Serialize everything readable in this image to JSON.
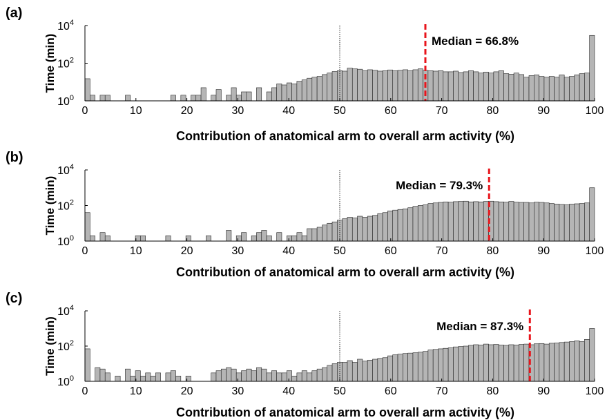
{
  "figure": {
    "background": "#ffffff"
  },
  "colors": {
    "bar_fill": "#b5b5b5",
    "bar_stroke": "#222222",
    "median_line": "#e8141b",
    "ref_line": "#000000"
  },
  "chart_data": [
    {
      "type": "bar",
      "panel_label": "(a)",
      "xlabel": "Contribution of anatomical arm to overall arm activity (%)",
      "ylabel": "Time (min)",
      "y_scale": "log",
      "ylim": [
        1,
        10000
      ],
      "xlim": [
        0,
        100
      ],
      "x_ticks": [
        "0",
        "10",
        "20",
        "30",
        "40",
        "50",
        "60",
        "70",
        "80",
        "90",
        "100"
      ],
      "y_ticks": [
        {
          "base": "10",
          "exp": "0"
        },
        {
          "base": "10",
          "exp": "2"
        },
        {
          "base": "10",
          "exp": "4"
        }
      ],
      "reference_line_x": 50,
      "median": 66.8,
      "median_label": "Median = 66.8%",
      "median_label_side": "right",
      "values": [
        15,
        2,
        1,
        2,
        2,
        1,
        1,
        1,
        2,
        1,
        1,
        1,
        1,
        1,
        1,
        1,
        1,
        2,
        1,
        2,
        1,
        2,
        2,
        5,
        1,
        2,
        4,
        1,
        2,
        5,
        2,
        3,
        3,
        1,
        5,
        1,
        3,
        5,
        8,
        7,
        9,
        8,
        11,
        13,
        16,
        18,
        20,
        25,
        30,
        36,
        40,
        38,
        55,
        50,
        48,
        40,
        45,
        42,
        38,
        40,
        44,
        40,
        42,
        45,
        40,
        45,
        50,
        42,
        40,
        38,
        40,
        35,
        35,
        38,
        32,
        35,
        40,
        35,
        30,
        34,
        30,
        35,
        40,
        28,
        26,
        30,
        25,
        18,
        22,
        24,
        20,
        18,
        20,
        18,
        24,
        18,
        20,
        24,
        28,
        30,
        3000
      ]
    },
    {
      "type": "bar",
      "panel_label": "(b)",
      "xlabel": "Contribution of anatomical arm to overall arm activity (%)",
      "ylabel": "Time (min)",
      "y_scale": "log",
      "ylim": [
        1,
        10000
      ],
      "xlim": [
        0,
        100
      ],
      "x_ticks": [
        "0",
        "10",
        "20",
        "30",
        "40",
        "50",
        "60",
        "70",
        "80",
        "90",
        "100"
      ],
      "y_ticks": [
        {
          "base": "10",
          "exp": "0"
        },
        {
          "base": "10",
          "exp": "2"
        },
        {
          "base": "10",
          "exp": "4"
        }
      ],
      "reference_line_x": 50,
      "median": 79.3,
      "median_label": "Median = 79.3%",
      "median_label_side": "left",
      "values": [
        40,
        2,
        1,
        3,
        2,
        1,
        1,
        1,
        1,
        1,
        2,
        2,
        1,
        1,
        1,
        1,
        2,
        1,
        1,
        1,
        2,
        1,
        1,
        1,
        2,
        1,
        1,
        1,
        4,
        1,
        2,
        3,
        1,
        2,
        3,
        4,
        2,
        1,
        3,
        1,
        2,
        2,
        3,
        2,
        5,
        5,
        6,
        8,
        10,
        12,
        15,
        18,
        22,
        20,
        25,
        22,
        25,
        28,
        35,
        40,
        50,
        55,
        60,
        65,
        75,
        90,
        100,
        110,
        130,
        140,
        150,
        160,
        155,
        165,
        170,
        175,
        160,
        165,
        160,
        170,
        175,
        165,
        160,
        155,
        170,
        155,
        150,
        150,
        140,
        155,
        150,
        140,
        130,
        120,
        115,
        110,
        120,
        125,
        130,
        140,
        1000
      ]
    },
    {
      "type": "bar",
      "panel_label": "(c)",
      "xlabel": "Contribution of anatomical arm to overall arm activity (%)",
      "ylabel": "Time (min)",
      "y_scale": "log",
      "ylim": [
        1,
        10000
      ],
      "xlim": [
        0,
        100
      ],
      "x_ticks": [
        "0",
        "10",
        "20",
        "30",
        "40",
        "50",
        "60",
        "70",
        "80",
        "90",
        "100"
      ],
      "y_ticks": [
        {
          "base": "10",
          "exp": "0"
        },
        {
          "base": "10",
          "exp": "2"
        },
        {
          "base": "10",
          "exp": "4"
        }
      ],
      "reference_line_x": 50,
      "median": 87.3,
      "median_label": "Median = 87.3%",
      "median_label_side": "left",
      "values": [
        70,
        1,
        6,
        5,
        3,
        1,
        2,
        1,
        5,
        2,
        4,
        2,
        3,
        2,
        3,
        1,
        3,
        4,
        2,
        1,
        2,
        1,
        1,
        1,
        1,
        3,
        4,
        5,
        6,
        5,
        3,
        4,
        5,
        4,
        6,
        5,
        3,
        4,
        3,
        3,
        4,
        2,
        3,
        4,
        3,
        4,
        5,
        6,
        8,
        10,
        12,
        12,
        15,
        12,
        18,
        14,
        16,
        18,
        20,
        22,
        28,
        32,
        35,
        38,
        40,
        42,
        45,
        50,
        60,
        65,
        70,
        75,
        80,
        90,
        95,
        100,
        110,
        120,
        115,
        130,
        120,
        125,
        115,
        110,
        120,
        115,
        125,
        130,
        120,
        135,
        140,
        130,
        145,
        150,
        160,
        170,
        180,
        200,
        180,
        240,
        1000
      ]
    }
  ]
}
